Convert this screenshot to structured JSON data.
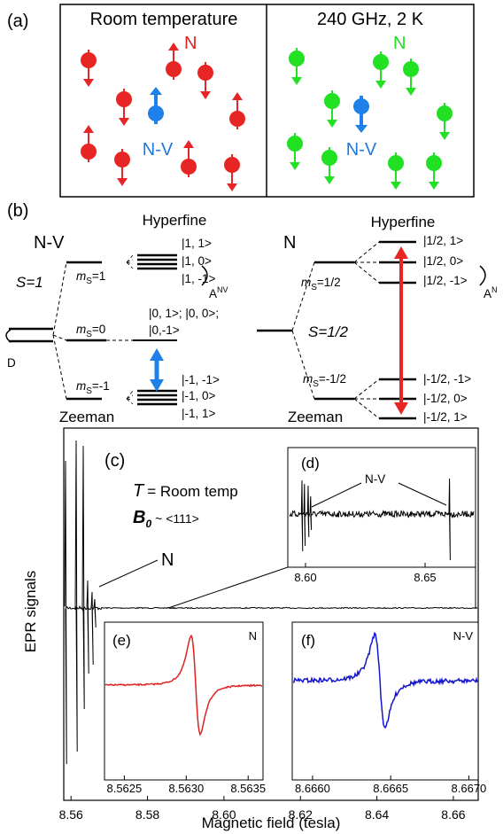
{
  "panel_a": {
    "label": "(a)",
    "left": {
      "title": "Room temperature",
      "n_label": "N",
      "nv_label": "N-V"
    },
    "right": {
      "title": "240 GHz, 2 K",
      "n_label": "N",
      "nv_label": "N-V"
    }
  },
  "panel_b": {
    "label": "(b)",
    "nv": {
      "name": "N-V",
      "hyperfine": "Hyperfine",
      "zeeman": "Zeeman",
      "spin": "S=1",
      "zero_field": "D",
      "ms_labels": [
        {
          "symbol": "m",
          "subscript": "S",
          "value": "=1"
        },
        {
          "symbol": "m",
          "subscript": "S",
          "value": "=0"
        },
        {
          "symbol": "m",
          "subscript": "S",
          "value": "=-1"
        }
      ],
      "states": [
        "|1, 1>",
        "|1, 0>",
        "|1, -1>",
        "|0, 1>; |0, 0>;",
        "|0,-1>",
        "|-1, -1>",
        "|-1, 0>",
        "|-1, 1>"
      ],
      "coupling": {
        "symbol": "A",
        "superscript": "NV"
      }
    },
    "n": {
      "name": "N",
      "hyperfine": "Hyperfine",
      "zeeman": "Zeeman",
      "spin": "S=1/2",
      "ms_labels": [
        {
          "symbol": "m",
          "subscript": "S",
          "value": "=1/2"
        },
        {
          "symbol": "m",
          "subscript": "S",
          "value": "=-1/2"
        }
      ],
      "states": [
        "|1/2, 1>",
        "|1/2, 0>",
        "|1/2, -1>",
        "|-1/2, -1>",
        "|-1/2, 0>",
        "|-1/2, 1>"
      ],
      "coupling": {
        "symbol": "A",
        "superscript": "N"
      }
    }
  },
  "panel_c": {
    "label": "(c)",
    "temperature_symbol": "T",
    "temperature": "= Room temp",
    "field_symbol": "B",
    "field_subscript": "0",
    "field_direction": "~ <111>",
    "n_annotation": "N",
    "ylabel": "EPR signals",
    "xlabel": "Magnetic field (tesla)",
    "xlim": [
      8.5581,
      8.6665
    ],
    "xticks": [
      8.56,
      8.58,
      {
        "value": 8.6,
        "label": "8.60"
      },
      8.62,
      8.64,
      8.66
    ]
  },
  "panel_d": {
    "label": "(d)",
    "annotation": "N-V",
    "xlim": [
      8.5926,
      8.6711
    ],
    "xticks": [
      {
        "value": 8.6,
        "label": "8.60"
      },
      8.65
    ]
  },
  "panel_e": {
    "label": "(e)",
    "tag": "N",
    "xlim": [
      8.56234,
      8.56362
    ],
    "xticks": [
      8.5625,
      {
        "value": 8.563,
        "label": "8.5630"
      },
      8.5635
    ]
  },
  "panel_f": {
    "label": "(f)",
    "tag": "N-V",
    "xlim": [
      8.66587,
      8.66706
    ],
    "xticks": [
      {
        "value": 8.666,
        "label": "8.6660"
      },
      8.6665,
      {
        "value": 8.667,
        "label": "8.6670"
      }
    ]
  }
}
